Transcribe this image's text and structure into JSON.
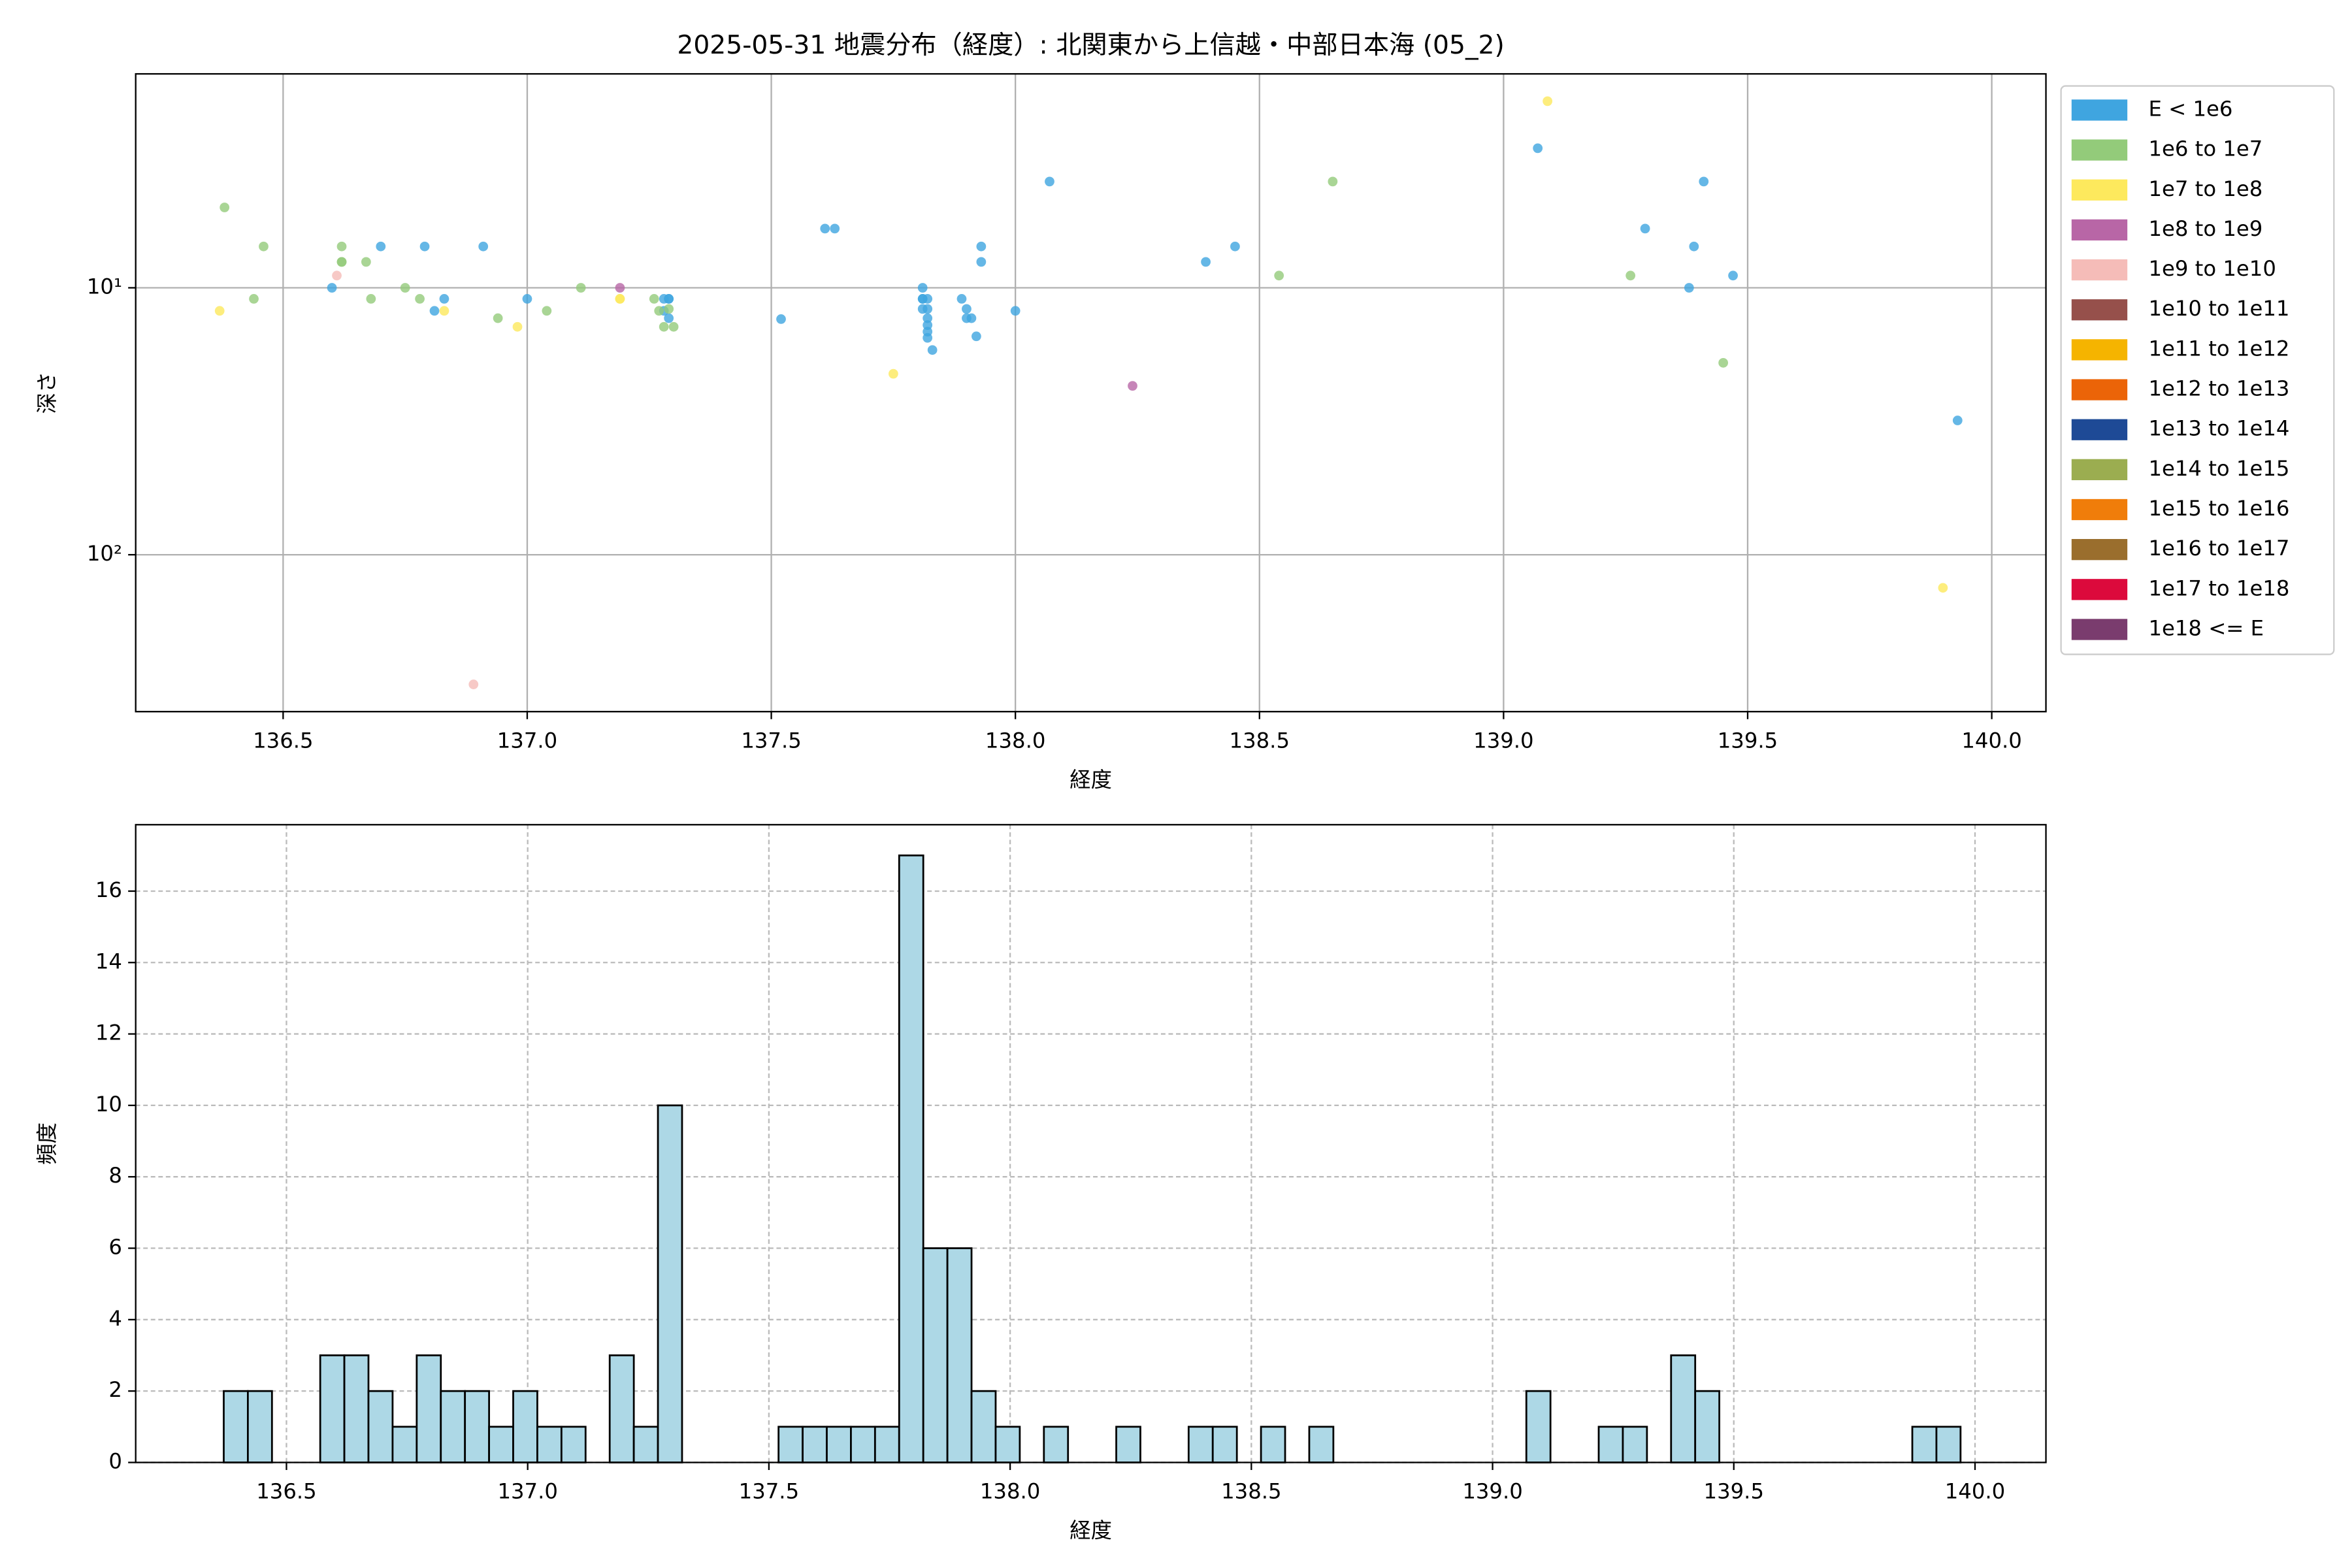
{
  "chart_data": [
    {
      "type": "scatter",
      "title": "2025-05-31 地震分布（経度）: 北関東から上信越・中部日本海 (05_2)",
      "xlabel": "経度",
      "ylabel": "深さ",
      "xlim": [
        136.198,
        140.111
      ],
      "ylim": [
        387,
        1.58
      ],
      "ylog": true,
      "grid": true,
      "legend": "outside-right",
      "xticks": [
        136.5,
        {
          "value": 137,
          "label": "137.0"
        },
        137.5,
        {
          "value": 138,
          "label": "138.0"
        },
        138.5,
        {
          "value": 139,
          "label": "139.0"
        },
        139.5,
        {
          "value": 140,
          "label": "140.0"
        }
      ],
      "yticks": [
        {
          "value": 10,
          "label": "10¹"
        },
        {
          "value": 100,
          "label": "10²"
        }
      ],
      "series": [
        {
          "name": "E < 1e6",
          "color": "#3fa5e0",
          "x": [
            136.6,
            136.7,
            136.79,
            136.81,
            136.83,
            136.91,
            137.0,
            137.28,
            137.29,
            137.29,
            137.28,
            137.29,
            137.52,
            137.61,
            137.63,
            137.81,
            137.81,
            137.81,
            137.82,
            137.81,
            137.82,
            137.82,
            137.82,
            137.82,
            137.82,
            137.83,
            137.89,
            137.9,
            137.9,
            137.91,
            137.92,
            137.93,
            137.93,
            138.0,
            138.07,
            138.39,
            138.45,
            139.07,
            139.29,
            139.38,
            139.39,
            139.41,
            139.47,
            139.93
          ],
          "values": [
            10,
            7,
            7,
            12.2,
            11,
            7,
            11,
            11,
            11,
            11,
            12.2,
            13,
            13.1,
            6,
            6,
            10,
            11,
            11,
            11,
            12,
            12,
            13,
            13.8,
            14.6,
            15.4,
            17.1,
            11,
            12,
            13,
            13,
            15.2,
            8,
            7,
            12.2,
            4,
            8,
            7,
            3,
            6,
            10,
            7,
            4,
            9,
            31.4
          ]
        },
        {
          "name": "1e6 to 1e7",
          "color": "#93cb7a",
          "x": [
            136.38,
            136.44,
            136.46,
            136.62,
            136.62,
            136.62,
            136.67,
            136.68,
            136.75,
            136.78,
            136.94,
            137.04,
            137.11,
            137.26,
            137.27,
            137.28,
            137.3,
            137.29,
            138.54,
            138.65,
            139.26,
            139.45
          ],
          "values": [
            5,
            11,
            7,
            8,
            8,
            7,
            8,
            11,
            10,
            11,
            13,
            12.2,
            10,
            11,
            12.2,
            14,
            14,
            12,
            9,
            4,
            9,
            19.1
          ]
        },
        {
          "name": "1e7 to 1e8",
          "color": "#fde95d",
          "x": [
            136.37,
            136.83,
            136.98,
            137.19,
            137.19,
            137.75,
            139.09,
            139.9
          ],
          "values": [
            12.2,
            12.2,
            14,
            11,
            11,
            21,
            2,
            133
          ]
        },
        {
          "name": "1e8 to 1e9",
          "color": "#b866a6",
          "x": [
            137.19,
            138.24
          ],
          "values": [
            10,
            23.3
          ]
        },
        {
          "name": "1e9 to 1e10",
          "color": "#f5bcb8",
          "x": [
            136.61,
            136.89
          ],
          "values": [
            9,
            306
          ]
        },
        {
          "name": "1e10 to 1e11",
          "color": "#96504b",
          "x": [],
          "values": []
        },
        {
          "name": "1e11 to 1e12",
          "color": "#f5b400",
          "x": [],
          "values": []
        },
        {
          "name": "1e12 to 1e13",
          "color": "#eb6408",
          "x": [],
          "values": []
        },
        {
          "name": "1e13 to 1e14",
          "color": "#1e4a96",
          "x": [],
          "values": []
        },
        {
          "name": "1e14 to 1e15",
          "color": "#9bad50",
          "x": [],
          "values": []
        },
        {
          "name": "1e15 to 1e16",
          "color": "#f07d0a",
          "x": [],
          "values": []
        },
        {
          "name": "1e16 to 1e17",
          "color": "#9a6e2d",
          "x": [],
          "values": []
        },
        {
          "name": "1e17 to 1e18",
          "color": "#dc0a3c",
          "x": [],
          "values": []
        },
        {
          "name": "1e18 <= E",
          "color": "#7a3c6e",
          "x": [],
          "values": []
        }
      ]
    },
    {
      "type": "histogram",
      "xlabel": "経度",
      "ylabel": "頻度",
      "color": "#add8e6",
      "edgecolor": "#000000",
      "grid": "dashed",
      "xlim": [
        136.1875,
        140.147
      ],
      "ylim": [
        0,
        17.86
      ],
      "xticks": [
        136.5,
        {
          "value": 137,
          "label": "137.0"
        },
        137.5,
        {
          "value": 138,
          "label": "138.0"
        },
        138.5,
        {
          "value": 139,
          "label": "139.0"
        },
        139.5,
        {
          "value": 140,
          "label": "140.0"
        }
      ],
      "yticks": [
        0,
        2,
        4,
        6,
        8,
        10,
        12,
        14,
        16
      ],
      "bins": [
        136.37,
        136.42,
        136.47,
        136.52,
        136.57,
        136.62,
        136.67,
        136.72,
        136.77,
        136.82,
        136.87,
        136.92,
        136.97,
        137.02,
        137.07,
        137.12,
        137.17,
        137.22,
        137.27,
        137.32,
        137.37,
        137.42,
        137.47,
        137.52,
        137.57,
        137.62,
        137.67,
        137.72,
        137.77,
        137.82,
        137.87,
        137.92,
        137.97,
        138.02,
        138.07,
        138.12,
        138.17,
        138.22,
        138.27,
        138.32,
        138.37,
        138.42,
        138.47,
        138.52,
        138.57,
        138.62,
        138.67,
        138.72,
        138.77,
        138.82,
        138.87,
        138.92,
        138.97,
        139.02,
        139.07,
        139.12,
        139.17,
        139.22,
        139.27,
        139.32,
        139.37,
        139.42,
        139.47,
        139.52,
        139.57,
        139.62,
        139.67,
        139.72,
        139.77,
        139.82,
        139.87,
        139.92,
        139.97
      ],
      "values": [
        2,
        2,
        0,
        0,
        3,
        3,
        2,
        1,
        3,
        2,
        2,
        1,
        2,
        1,
        1,
        0,
        3,
        1,
        10,
        0,
        0,
        0,
        0,
        1,
        1,
        1,
        1,
        1,
        17,
        6,
        6,
        2,
        1,
        0,
        1,
        0,
        0,
        1,
        0,
        0,
        1,
        1,
        0,
        1,
        0,
        1,
        0,
        0,
        0,
        0,
        0,
        0,
        0,
        0,
        2,
        0,
        0,
        1,
        1,
        0,
        3,
        2,
        0,
        0,
        0,
        0,
        0,
        0,
        0,
        0,
        1,
        1
      ]
    }
  ]
}
